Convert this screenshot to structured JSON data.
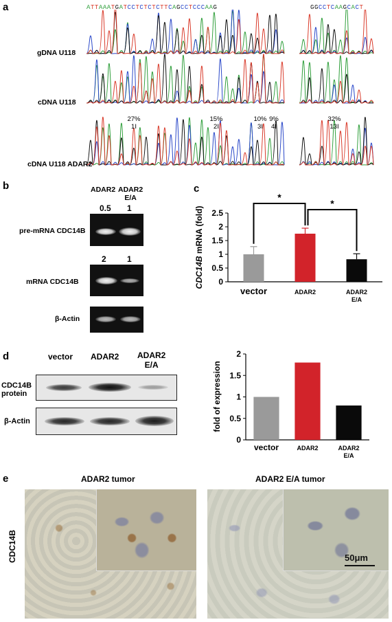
{
  "panels": {
    "a": "a",
    "b": "b",
    "c": "c",
    "d": "d",
    "e": "e"
  },
  "panel_a": {
    "sequence_left": "ATTAAATGATCCTCTCTCTTCAGCCTCCCAAG",
    "sequence_right": "GGCCTCAAGCACT",
    "rows": [
      "gDNA U118",
      "cDNA U118",
      "cDNA U118 ADAR2"
    ],
    "editing_sites": [
      {
        "pct": "27%",
        "site": "1I"
      },
      {
        "pct": "15%",
        "site": "2I"
      },
      {
        "pct": "10%",
        "site": "3I"
      },
      {
        "pct": "9%",
        "site": "4I"
      },
      {
        "pct": "32%",
        "site": "13I"
      }
    ],
    "trace_colors": {
      "A": "#2e9e3a",
      "C": "#2846c8",
      "G": "#111111",
      "T": "#d93a2a"
    }
  },
  "panel_b": {
    "col_headers": [
      "ADAR2",
      "ADAR2 E/A"
    ],
    "col_header_line1": "ADAR2",
    "col_header_line2a": "ADAR2",
    "col_header_line2b": "E/A",
    "rows": [
      {
        "label": "pre-mRNA CDC14B",
        "values": [
          "0.5",
          "1"
        ]
      },
      {
        "label": "mRNA CDC14B",
        "values": [
          "2",
          "1"
        ]
      },
      {
        "label": "β-Actin",
        "values": []
      }
    ]
  },
  "panel_c": {
    "ylabel_gene": "CDC14B",
    "ylabel_rest": " mRNA (fold)",
    "significance": [
      "*",
      "*"
    ]
  },
  "panel_d": {
    "col_headers": [
      "vector",
      "ADAR2",
      "ADAR2 E/A"
    ],
    "col_h3a": "ADAR2",
    "col_h3b": "E/A",
    "row_labels": {
      "protein_line1": "CDC14B",
      "protein_line2": "protein",
      "actin": "β-Actin"
    }
  },
  "panel_e": {
    "left_title": "ADAR2 tumor",
    "right_title": "ADAR2 E/A tumor",
    "row_label": "CDC14B",
    "scale_bar": "50μm"
  },
  "chart_data": [
    {
      "type": "bar",
      "panel": "c",
      "categories": [
        "vector",
        "ADAR2",
        "ADAR2 E/A"
      ],
      "values": [
        1.0,
        1.75,
        0.82
      ],
      "errors": [
        0.28,
        0.2,
        0.2
      ],
      "colors": [
        "#9a9a9a",
        "#d2232a",
        "#0a0a0a"
      ],
      "xlabel": "",
      "ylabel": "CDC14B mRNA (fold)",
      "ylim": [
        0,
        2.5
      ],
      "yticks": [
        "0",
        "0.5",
        "1",
        "1.5",
        "2",
        "2.5"
      ],
      "significance": [
        {
          "from": "vector",
          "to": "ADAR2",
          "label": "*"
        },
        {
          "from": "ADAR2",
          "to": "ADAR2 E/A",
          "label": "*"
        }
      ]
    },
    {
      "type": "bar",
      "panel": "d",
      "categories": [
        "vector",
        "ADAR2",
        "ADAR2 E/A"
      ],
      "values": [
        1.0,
        1.8,
        0.8
      ],
      "colors": [
        "#9a9a9a",
        "#d2232a",
        "#0a0a0a"
      ],
      "xlabel": "",
      "ylabel": "fold of expression",
      "ylim": [
        0,
        2
      ],
      "yticks": [
        "0",
        "0.5",
        "1",
        "1.5",
        "2"
      ]
    }
  ]
}
